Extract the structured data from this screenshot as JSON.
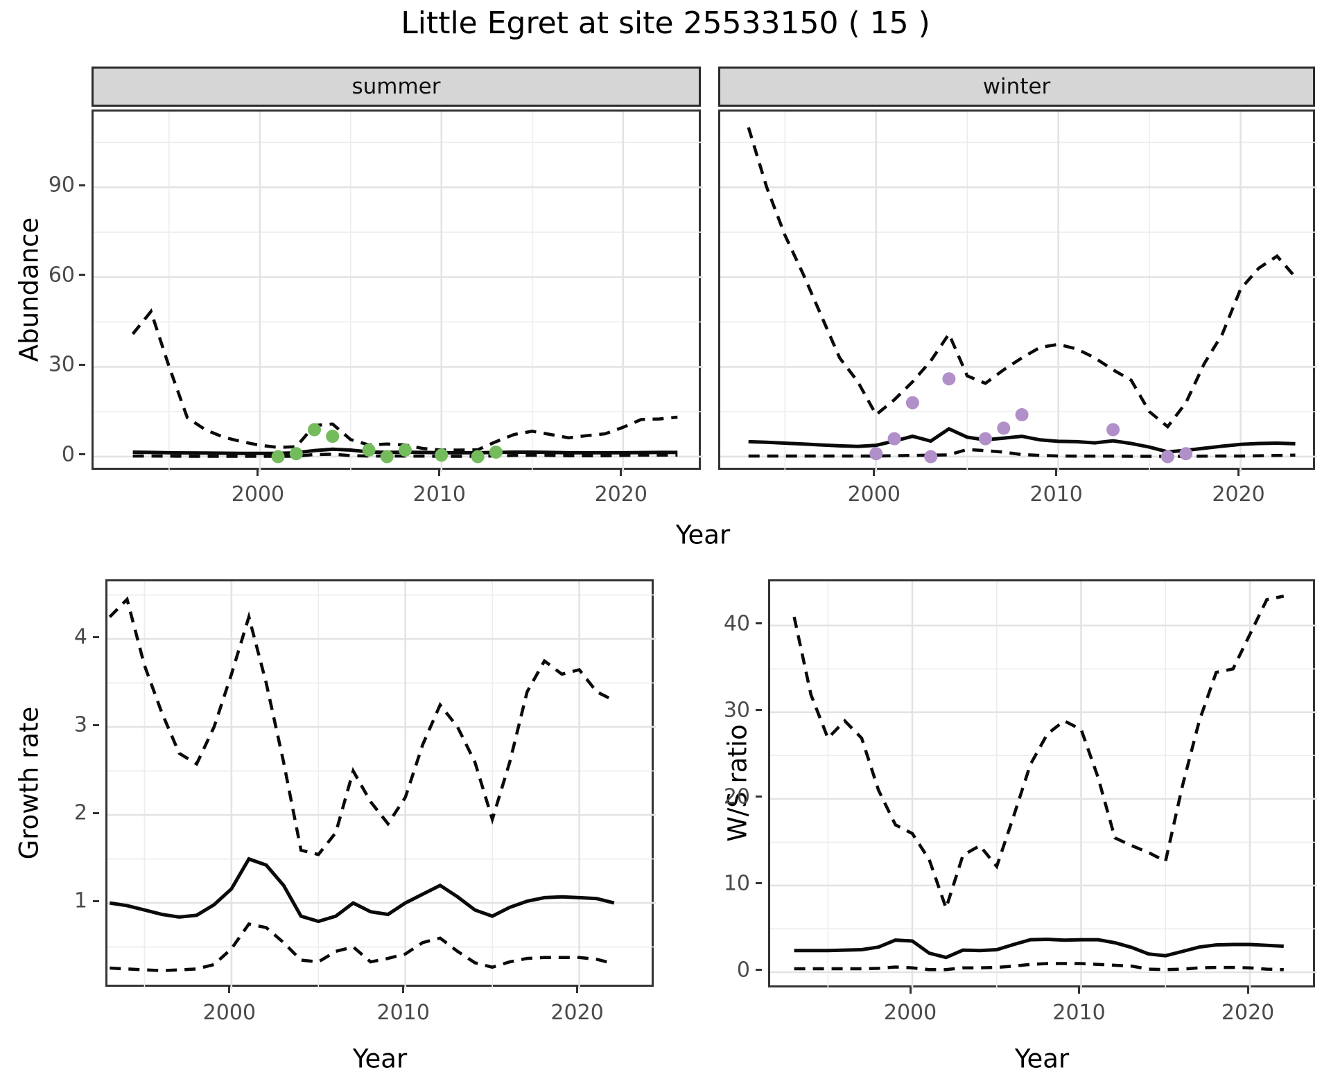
{
  "title": "Little Egret at site 25533150 ( 15 )",
  "facets": {
    "summer": "summer",
    "winter": "winter"
  },
  "axis_titles": {
    "y_top": "Abundance",
    "y_bottom_left": "Growth rate",
    "y_bottom_right": "W/S ratio",
    "x": "Year"
  },
  "colors": {
    "summer_point": "#74BB5C",
    "winter_point": "#B18FC9",
    "fit_line": "#0a0a0a",
    "ci_line": "#0a0a0a",
    "grid_major": "#e3e3e3",
    "grid_minor": "#ededed",
    "strip_bg": "#d6d6d6",
    "panel_border": "#333333",
    "tick_text": "#4a4a4a"
  },
  "chart_data": [
    {
      "id": "abundance-summer",
      "type": "line",
      "facet_label": "summer",
      "xlabel": "Year",
      "ylabel": "Abundance",
      "xlim": [
        1990.84,
        2024.4
      ],
      "ylim": [
        -5.1,
        115.3
      ],
      "xticks": {
        "major": [
          2000,
          2010,
          2020
        ],
        "minor": [
          1995,
          2005,
          2015
        ],
        "labels": [
          "2000",
          "2010",
          "2020"
        ]
      },
      "yticks": {
        "major": [
          0,
          30,
          60,
          90
        ],
        "minor": [
          15,
          45,
          75,
          105
        ],
        "labels": [
          "0",
          "30",
          "60",
          "90"
        ]
      },
      "series": [
        {
          "name": "model_fit",
          "linetype": "solid",
          "x": [
            1993,
            1994,
            1995,
            1996,
            1997,
            1998,
            1999,
            2000,
            2001,
            2002,
            2003,
            2004,
            2005,
            2006,
            2007,
            2008,
            2009,
            2010,
            2011,
            2012,
            2013,
            2014,
            2015,
            2016,
            2017,
            2018,
            2019,
            2020,
            2021,
            2022,
            2023
          ],
          "y": [
            1.5,
            1.4,
            1.3,
            1.25,
            1.2,
            1.15,
            1.1,
            1.1,
            1.1,
            1.3,
            2.0,
            2.5,
            2.2,
            1.6,
            1.4,
            1.5,
            1.4,
            1.3,
            1.3,
            1.3,
            1.4,
            1.5,
            1.5,
            1.4,
            1.3,
            1.3,
            1.3,
            1.3,
            1.35,
            1.4,
            1.4
          ]
        },
        {
          "name": "upper_ci",
          "linetype": "dashed",
          "x": [
            1993,
            1994,
            1995,
            1996,
            1997,
            1998,
            1999,
            2000,
            2001,
            2002,
            2003,
            2004,
            2005,
            2006,
            2007,
            2008,
            2009,
            2010,
            2011,
            2012,
            2013,
            2014,
            2015,
            2016,
            2017,
            2018,
            2019,
            2020,
            2021,
            2022,
            2023
          ],
          "y": [
            41,
            48.5,
            30,
            13,
            9,
            6.5,
            5,
            3.8,
            3.1,
            3.3,
            10.4,
            10.9,
            5.7,
            3.9,
            4.2,
            3.9,
            2.7,
            2.2,
            2.2,
            2.3,
            5,
            7.4,
            8.5,
            7.4,
            6.3,
            7,
            7.6,
            9.8,
            12.4,
            12.6,
            13.2
          ]
        },
        {
          "name": "lower_ci",
          "linetype": "dashed",
          "x": [
            1993,
            1994,
            1995,
            1996,
            1997,
            1998,
            1999,
            2000,
            2001,
            2002,
            2003,
            2004,
            2005,
            2006,
            2007,
            2008,
            2009,
            2010,
            2011,
            2012,
            2013,
            2014,
            2015,
            2016,
            2017,
            2018,
            2019,
            2020,
            2021,
            2022,
            2023
          ],
          "y": [
            0.2,
            0.2,
            0.15,
            0.1,
            0.1,
            0.1,
            0.1,
            0.1,
            0.1,
            0.15,
            0.7,
            0.8,
            0.35,
            0.2,
            0.2,
            0.2,
            0.15,
            0.1,
            0.1,
            0.1,
            0.25,
            0.4,
            0.45,
            0.4,
            0.3,
            0.3,
            0.3,
            0.4,
            0.5,
            0.5,
            0.5
          ]
        }
      ],
      "points": {
        "name": "observed_counts",
        "color_key": "summer_point",
        "x": [
          2001,
          2002,
          2003,
          2004,
          2006,
          2007,
          2008,
          2010,
          2012,
          2013
        ],
        "y": [
          0,
          1,
          9,
          6.8,
          2.2,
          0,
          2.2,
          0.5,
          0,
          1.5
        ]
      }
    },
    {
      "id": "abundance-winter",
      "type": "line",
      "facet_label": "winter",
      "xlabel": "Year",
      "ylabel": "Abundance",
      "xlim": [
        1991.45,
        2024.2
      ],
      "ylim": [
        -5.1,
        115.3
      ],
      "xticks": {
        "major": [
          2000,
          2010,
          2020
        ],
        "minor": [
          1995,
          2005,
          2015
        ],
        "labels": [
          "2000",
          "2010",
          "2020"
        ]
      },
      "yticks": {
        "major": [
          0,
          30,
          60,
          90
        ],
        "minor": [
          15,
          45,
          75,
          105
        ],
        "labels": [
          "0",
          "30",
          "60",
          "90"
        ]
      },
      "series": [
        {
          "name": "model_fit",
          "linetype": "solid",
          "x": [
            1993,
            1994,
            1995,
            1996,
            1997,
            1998,
            1999,
            2000,
            2001,
            2002,
            2003,
            2004,
            2005,
            2006,
            2007,
            2008,
            2009,
            2010,
            2011,
            2012,
            2013,
            2014,
            2015,
            2016,
            2017,
            2018,
            2019,
            2020,
            2021,
            2022,
            2023
          ],
          "y": [
            5,
            4.8,
            4.5,
            4.2,
            3.9,
            3.6,
            3.4,
            3.8,
            5.2,
            6.8,
            5.2,
            9.3,
            6.5,
            5.6,
            6.2,
            6.8,
            5.6,
            5.1,
            5,
            4.6,
            5.3,
            4.4,
            3.2,
            1.6,
            2.1,
            2.8,
            3.5,
            4.1,
            4.4,
            4.5,
            4.3
          ]
        },
        {
          "name": "upper_ci",
          "linetype": "dashed",
          "x": [
            1993,
            1994,
            1995,
            1996,
            1997,
            1998,
            1999,
            2000,
            2001,
            2002,
            2003,
            2004,
            2005,
            2006,
            2007,
            2008,
            2009,
            2010,
            2011,
            2012,
            2013,
            2014,
            2015,
            2016,
            2017,
            2018,
            2019,
            2020,
            2021,
            2022,
            2023
          ],
          "y": [
            110,
            90,
            74,
            61,
            47,
            33,
            25,
            14,
            19,
            25,
            32,
            41,
            27,
            24.5,
            29,
            33,
            36.5,
            37.5,
            36,
            33,
            29,
            25.5,
            15,
            10,
            18,
            31,
            41,
            56,
            63,
            67,
            60
          ]
        },
        {
          "name": "lower_ci",
          "linetype": "dashed",
          "x": [
            1993,
            1994,
            1995,
            1996,
            1997,
            1998,
            1999,
            2000,
            2001,
            2002,
            2003,
            2004,
            2005,
            2006,
            2007,
            2008,
            2009,
            2010,
            2011,
            2012,
            2013,
            2014,
            2015,
            2016,
            2017,
            2018,
            2019,
            2020,
            2021,
            2022,
            2023
          ],
          "y": [
            0.2,
            0.2,
            0.2,
            0.2,
            0.2,
            0.2,
            0.2,
            0.2,
            0.3,
            0.4,
            0.5,
            0.6,
            2.4,
            2.0,
            1.5,
            0.7,
            0.4,
            0.2,
            0.15,
            0.15,
            0.15,
            0.1,
            0.1,
            0.1,
            0.1,
            0.15,
            0.2,
            0.2,
            0.3,
            0.4,
            0.5
          ]
        }
      ],
      "points": {
        "name": "observed_counts",
        "color_key": "winter_point",
        "x": [
          2000,
          2001,
          2002,
          2003,
          2004,
          2006,
          2007,
          2008,
          2013,
          2016,
          2017
        ],
        "y": [
          1,
          6,
          18,
          0,
          26,
          6,
          9.5,
          14,
          9,
          0,
          1
        ]
      }
    },
    {
      "id": "growth-rate",
      "type": "line",
      "facet_label": null,
      "xlabel": "Year",
      "ylabel": "Growth rate",
      "xlim": [
        1992.87,
        2024.4
      ],
      "ylim": [
        0.024,
        4.654
      ],
      "xticks": {
        "major": [
          2000,
          2010,
          2020
        ],
        "minor": [
          1995,
          2005,
          2015
        ],
        "labels": [
          "2000",
          "2010",
          "2020"
        ]
      },
      "yticks": {
        "major": [
          1,
          2,
          3,
          4
        ],
        "minor": [
          0.5,
          1.5,
          2.5,
          3.5,
          4.5
        ],
        "labels": [
          "1",
          "2",
          "3",
          "4"
        ]
      },
      "series": [
        {
          "name": "growth_rate_fit",
          "linetype": "solid",
          "x": [
            1993,
            1994,
            1995,
            1996,
            1997,
            1998,
            1999,
            2000,
            2001,
            2002,
            2003,
            2004,
            2005,
            2006,
            2007,
            2008,
            2009,
            2010,
            2011,
            2012,
            2013,
            2014,
            2015,
            2016,
            2017,
            2018,
            2019,
            2020,
            2021,
            2022
          ],
          "y": [
            1.0,
            0.97,
            0.92,
            0.87,
            0.84,
            0.86,
            0.98,
            1.16,
            1.5,
            1.43,
            1.2,
            0.85,
            0.79,
            0.85,
            1.0,
            0.9,
            0.87,
            1.0,
            1.1,
            1.2,
            1.07,
            0.92,
            0.85,
            0.95,
            1.02,
            1.06,
            1.07,
            1.06,
            1.05,
            1.0
          ]
        },
        {
          "name": "upper_ci",
          "linetype": "dashed",
          "x": [
            1993,
            1994,
            1995,
            1996,
            1997,
            1998,
            1999,
            2000,
            2001,
            2002,
            2003,
            2004,
            2005,
            2006,
            2007,
            2008,
            2009,
            2010,
            2011,
            2012,
            2013,
            2014,
            2015,
            2016,
            2017,
            2018,
            2019,
            2020,
            2021,
            2022
          ],
          "y": [
            4.25,
            4.45,
            3.7,
            3.16,
            2.7,
            2.58,
            3.0,
            3.6,
            4.25,
            3.5,
            2.6,
            1.6,
            1.55,
            1.8,
            2.5,
            2.15,
            1.9,
            2.2,
            2.8,
            3.25,
            3.0,
            2.6,
            1.95,
            2.6,
            3.4,
            3.75,
            3.6,
            3.65,
            3.4,
            3.3
          ]
        },
        {
          "name": "lower_ci",
          "linetype": "dashed",
          "x": [
            1993,
            1994,
            1995,
            1996,
            1997,
            1998,
            1999,
            2000,
            2001,
            2002,
            2003,
            2004,
            2005,
            2006,
            2007,
            2008,
            2009,
            2010,
            2011,
            2012,
            2013,
            2014,
            2015,
            2016,
            2017,
            2018,
            2019,
            2020,
            2021,
            2022
          ],
          "y": [
            0.26,
            0.25,
            0.24,
            0.23,
            0.24,
            0.25,
            0.3,
            0.48,
            0.76,
            0.72,
            0.55,
            0.35,
            0.33,
            0.45,
            0.5,
            0.33,
            0.37,
            0.42,
            0.55,
            0.6,
            0.45,
            0.32,
            0.27,
            0.33,
            0.37,
            0.38,
            0.38,
            0.38,
            0.36,
            0.31
          ]
        }
      ],
      "points": null
    },
    {
      "id": "ws-ratio",
      "type": "line",
      "facet_label": null,
      "xlabel": "Year",
      "ylabel": "W/S ratio",
      "xlim": [
        1991.58,
        2023.98
      ],
      "ylim": [
        -2,
        45.1
      ],
      "xticks": {
        "major": [
          2000,
          2010,
          2020
        ],
        "minor": [
          1995,
          2005,
          2015
        ],
        "labels": [
          "2000",
          "2010",
          "2020"
        ]
      },
      "yticks": {
        "major": [
          0,
          10,
          20,
          30,
          40
        ],
        "minor": [
          5,
          15,
          25,
          35
        ],
        "labels": [
          "0",
          "10",
          "20",
          "30",
          "40"
        ]
      },
      "series": [
        {
          "name": "ws_ratio_fit",
          "linetype": "solid",
          "x": [
            1993,
            1994,
            1995,
            1996,
            1997,
            1998,
            1999,
            2000,
            2001,
            2002,
            2003,
            2004,
            2005,
            2006,
            2007,
            2008,
            2009,
            2010,
            2011,
            2012,
            2013,
            2014,
            2015,
            2016,
            2017,
            2018,
            2019,
            2020,
            2021,
            2022
          ],
          "y": [
            2.5,
            2.5,
            2.5,
            2.55,
            2.6,
            2.9,
            3.7,
            3.6,
            2.2,
            1.7,
            2.55,
            2.5,
            2.6,
            3.2,
            3.75,
            3.8,
            3.7,
            3.75,
            3.75,
            3.4,
            2.85,
            2.1,
            1.9,
            2.4,
            2.9,
            3.15,
            3.2,
            3.2,
            3.1,
            3.0
          ]
        },
        {
          "name": "upper_ci",
          "linetype": "dashed",
          "x": [
            1993,
            1994,
            1995,
            1996,
            1997,
            1998,
            1999,
            2000,
            2001,
            2002,
            2003,
            2004,
            2005,
            2006,
            2007,
            2008,
            2009,
            2010,
            2011,
            2012,
            2013,
            2014,
            2015,
            2016,
            2017,
            2018,
            2019,
            2020,
            2021,
            2022
          ],
          "y": [
            41,
            32,
            27,
            29,
            27,
            21,
            17,
            16,
            13,
            7.4,
            13.5,
            14.6,
            12.2,
            18,
            24,
            27.5,
            29,
            28,
            22.5,
            15.5,
            14.6,
            13.8,
            12.8,
            21.5,
            29,
            34.6,
            35,
            39,
            43,
            43.4
          ]
        },
        {
          "name": "lower_ci",
          "linetype": "dashed",
          "x": [
            1993,
            1994,
            1995,
            1996,
            1997,
            1998,
            1999,
            2000,
            2001,
            2002,
            2003,
            2004,
            2005,
            2006,
            2007,
            2008,
            2009,
            2010,
            2011,
            2012,
            2013,
            2014,
            2015,
            2016,
            2017,
            2018,
            2019,
            2020,
            2021,
            2022
          ],
          "y": [
            0.4,
            0.4,
            0.4,
            0.4,
            0.4,
            0.45,
            0.6,
            0.5,
            0.3,
            0.3,
            0.5,
            0.5,
            0.55,
            0.7,
            0.9,
            1.0,
            1.0,
            1.0,
            0.9,
            0.8,
            0.7,
            0.35,
            0.3,
            0.35,
            0.5,
            0.55,
            0.55,
            0.5,
            0.35,
            0.3
          ]
        }
      ],
      "points": null
    }
  ]
}
